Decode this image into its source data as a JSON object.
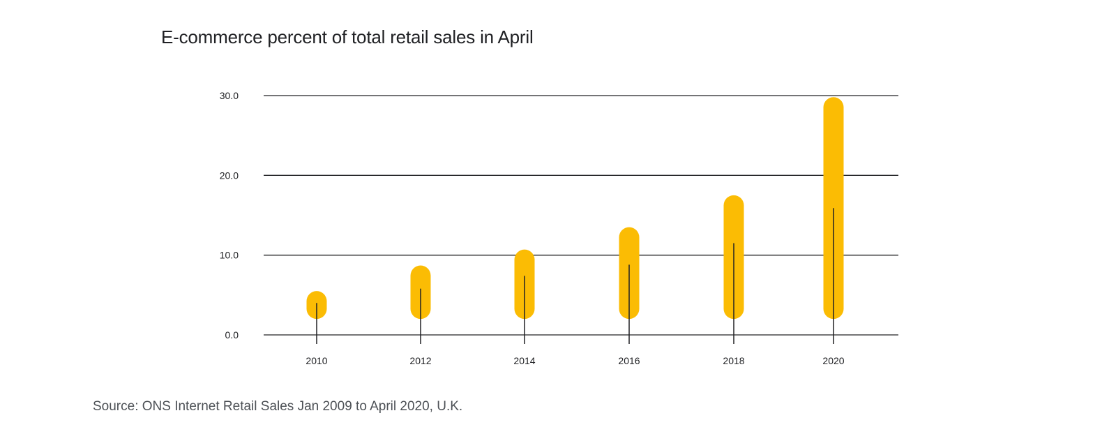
{
  "chart_data": {
    "type": "bar",
    "title": "E-commerce percent of total retail sales in April",
    "categories": [
      "2010",
      "2012",
      "2014",
      "2016",
      "2018",
      "2020"
    ],
    "series": [
      {
        "name": "E-commerce percent of total retail sales",
        "range_low": [
          2.0,
          2.0,
          2.0,
          2.0,
          2.0,
          2.0
        ],
        "range_high": [
          5.5,
          8.7,
          10.7,
          13.5,
          17.5,
          29.8
        ],
        "values": [
          4.0,
          5.8,
          7.4,
          8.8,
          11.5,
          15.9
        ]
      }
    ],
    "xlabel": "",
    "ylabel": "",
    "ylim": [
      0,
      30
    ],
    "yticks": [
      "0.0",
      "10.0",
      "20.0",
      "30.0"
    ],
    "grid": true,
    "colors": {
      "bar": "#FBBC04",
      "line": "#202124",
      "grid": "#202124"
    }
  },
  "source": "Source: ONS Internet Retail Sales Jan 2009 to April 2020, U.K."
}
